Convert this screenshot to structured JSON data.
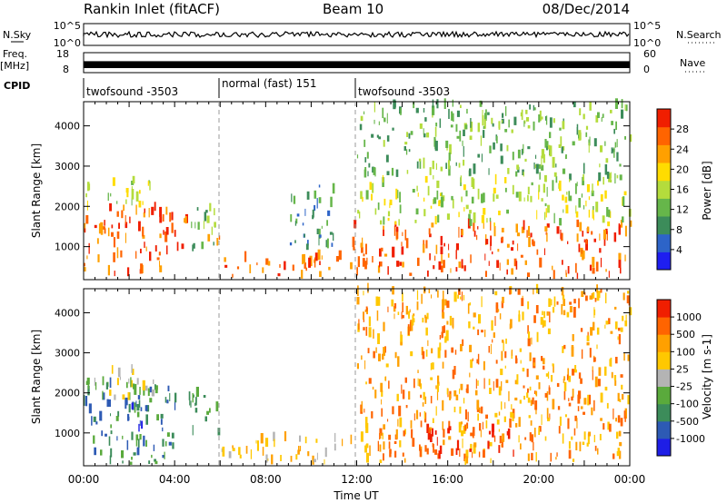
{
  "header": {
    "station": "Rankin Inlet (fitACF)",
    "beam": "Beam 10",
    "date": "08/Dec/2014"
  },
  "top_panels": {
    "nsky_label": "N.Sky",
    "nsky_ticks": [
      "10^5",
      "10^0"
    ],
    "nsearch_label": "N.Search",
    "nsearch_ticks": [
      "10^5",
      "10^0"
    ],
    "freq_label": "Freq.",
    "freq_unit": "[MHz]",
    "freq_ticks": [
      "18",
      "8"
    ],
    "nave_label": "Nave",
    "nave_ticks": [
      "60",
      "0"
    ],
    "cpid_label": "CPID",
    "cpid_segments": [
      {
        "label": "twofsound -3503",
        "start": 0,
        "end": 6
      },
      {
        "label": "normal (fast) 151",
        "start": 6,
        "end": 12
      },
      {
        "label": "twofsound -3503",
        "start": 12,
        "end": 24
      }
    ]
  },
  "chart_data": [
    {
      "type": "heatmap",
      "panel": "power",
      "xlabel": "",
      "ylabel": "Slant Range [km]",
      "xlim": [
        0,
        24
      ],
      "ylim": [
        180,
        4600
      ],
      "yticks": [
        1000,
        2000,
        3000,
        4000
      ],
      "colorbar": {
        "label": "Power [dB]",
        "ticks": [
          "28",
          "24",
          "20",
          "16",
          "12",
          "8",
          "4"
        ],
        "range": [
          0,
          32
        ],
        "colors": [
          "#1e1ef0",
          "#2d64c8",
          "#3c8c5a",
          "#66b64a",
          "#b4dc3c",
          "#ffdc00",
          "#ffa000",
          "#ff6400",
          "#f01e00"
        ]
      },
      "regions": [
        {
          "t0": 0.0,
          "t1": 3.6,
          "r0": 200,
          "r1": 400,
          "level": 28
        },
        {
          "t0": 0.0,
          "t1": 3.6,
          "r0": 500,
          "r1": 1900,
          "level": 26
        },
        {
          "t0": 0.0,
          "t1": 3.0,
          "r0": 1900,
          "r1": 2600,
          "level": 15
        },
        {
          "t0": 3.6,
          "t1": 4.6,
          "r0": 600,
          "r1": 1800,
          "level": 26
        },
        {
          "t0": 4.6,
          "t1": 5.9,
          "r0": 700,
          "r1": 1900,
          "level": 10
        },
        {
          "t0": 5.0,
          "t1": 6.0,
          "r0": 1000,
          "r1": 1300,
          "level": 26
        },
        {
          "t0": 6.0,
          "t1": 11.8,
          "r0": 200,
          "r1": 700,
          "level": 27
        },
        {
          "t0": 9.0,
          "t1": 11.0,
          "r0": 900,
          "r1": 2500,
          "level": 6
        },
        {
          "t0": 11.8,
          "t1": 24.0,
          "r0": 200,
          "r1": 1500,
          "level": 27
        },
        {
          "t0": 12.0,
          "t1": 24.0,
          "r0": 1500,
          "r1": 2600,
          "level": 14
        },
        {
          "t0": 12.0,
          "t1": 24.0,
          "r0": 2600,
          "r1": 4500,
          "level": 10
        }
      ]
    },
    {
      "type": "heatmap",
      "panel": "velocity",
      "xlabel": "Time UT",
      "ylabel": "Slant Range [km]",
      "xlim": [
        0,
        24
      ],
      "ylim": [
        180,
        4600
      ],
      "xticks": [
        "00:00",
        "04:00",
        "08:00",
        "12:00",
        "16:00",
        "20:00",
        "00:00"
      ],
      "yticks": [
        1000,
        2000,
        3000,
        4000
      ],
      "colorbar": {
        "label": "Velocity [m s-1]",
        "ticks": [
          "1000",
          "500",
          "100",
          "25",
          "-25",
          "-100",
          "-500",
          "-1000"
        ],
        "colors": [
          "#1e1ee6",
          "#2d5ab4",
          "#3c8c5a",
          "#5aaa3c",
          "#b4b4b4",
          "#ffc800",
          "#ffa000",
          "#ff6400",
          "#f01e00"
        ]
      },
      "regions": [
        {
          "t0": 0.0,
          "t1": 4.0,
          "r0": 200,
          "r1": 2200,
          "level": 2
        },
        {
          "t0": 1.8,
          "t1": 2.6,
          "r0": 900,
          "r1": 1700,
          "level": 0
        },
        {
          "t0": 0.0,
          "t1": 3.5,
          "r0": 1800,
          "r1": 2500,
          "level": 4
        },
        {
          "t0": 4.6,
          "t1": 5.9,
          "r0": 800,
          "r1": 1900,
          "level": 2
        },
        {
          "t0": 6.0,
          "t1": 11.8,
          "r0": 200,
          "r1": 800,
          "level": 5
        },
        {
          "t0": 11.8,
          "t1": 24.0,
          "r0": 200,
          "r1": 1500,
          "level": 6
        },
        {
          "t0": 15.0,
          "t1": 19.0,
          "r0": 300,
          "r1": 1100,
          "level": 8
        },
        {
          "t0": 12.0,
          "t1": 24.0,
          "r0": 1500,
          "r1": 2600,
          "level": 6
        },
        {
          "t0": 12.0,
          "t1": 24.0,
          "r0": 2600,
          "r1": 4500,
          "level": 6
        }
      ]
    }
  ]
}
